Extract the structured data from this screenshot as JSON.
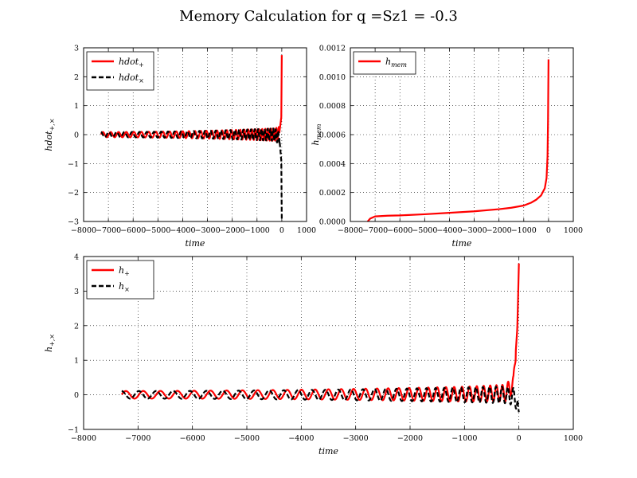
{
  "figure": {
    "title": "Memory Calculation for q =Sz1 = -0.3"
  },
  "colors": {
    "red": "#ff0000",
    "black": "#000000"
  },
  "chart_data": [
    {
      "type": "line",
      "panel": "top-left",
      "xlabel": "time",
      "ylabel": "hdot",
      "ylabel_sub": "+,×",
      "xlim": [
        -8000,
        1000
      ],
      "ylim": [
        -3,
        3
      ],
      "xticks": [
        -8000,
        -7000,
        -6000,
        -5000,
        -4000,
        -3000,
        -2000,
        -1000,
        0,
        1000
      ],
      "xtick_labels": [
        "−8000",
        "−7000",
        "−6000",
        "−5000",
        "−4000",
        "−3000",
        "−2000",
        "−1000",
        "0",
        "1000"
      ],
      "yticks": [
        -3,
        -2,
        -1,
        0,
        1,
        2,
        3
      ],
      "ytick_labels": [
        "−3",
        "−2",
        "−1",
        "0",
        "1",
        "2",
        "3"
      ],
      "grid": true,
      "legend_position": "top-left",
      "series": [
        {
          "name": "hdot",
          "name_sub": "+",
          "color": "#ff0000",
          "style": "solid",
          "description_x": [
            -7300,
            -1000,
            -300,
            -100,
            -20,
            0
          ],
          "x": [
            -7300,
            -1000,
            -300,
            -100,
            -20,
            0
          ],
          "y": [
            0,
            0,
            0,
            0.05,
            0.6,
            2.75
          ],
          "oscillation": {
            "x_start": -7300,
            "x_end": -100,
            "amp_start": 0.09,
            "amp_end": 0.22,
            "period_start": 320,
            "period_end": 95
          }
        },
        {
          "name": "hdot",
          "name_sub": "×",
          "color": "#000000",
          "style": "dashed",
          "x": [
            -7300,
            -1000,
            -300,
            -100,
            -20,
            0
          ],
          "y": [
            0,
            0,
            0,
            -0.1,
            -0.9,
            -2.9
          ],
          "oscillation": {
            "x_start": -7300,
            "x_end": -100,
            "amp_start": 0.09,
            "amp_end": 0.22,
            "period_start": 320,
            "period_end": 95,
            "phase": 1.5708
          }
        }
      ]
    },
    {
      "type": "line",
      "panel": "top-right",
      "xlabel": "time",
      "ylabel": "h",
      "ylabel_sub": "mem",
      "xlim": [
        -8000,
        1000
      ],
      "ylim": [
        0,
        0.0012
      ],
      "xticks": [
        -8000,
        -7000,
        -6000,
        -5000,
        -4000,
        -3000,
        -2000,
        -1000,
        0,
        1000
      ],
      "xtick_labels": [
        "−8000",
        "−7000",
        "−6000",
        "−5000",
        "−4000",
        "−3000",
        "−2000",
        "−1000",
        "0",
        "1000"
      ],
      "yticks": [
        0,
        0.0002,
        0.0004,
        0.0006,
        0.0008,
        0.001,
        0.0012
      ],
      "ytick_labels": [
        "0.0000",
        "0.0002",
        "0.0004",
        "0.0006",
        "0.0008",
        "0.0010",
        "0.0012"
      ],
      "grid": true,
      "legend_position": "top-left",
      "series": [
        {
          "name": "h",
          "name_sub": "mem",
          "color": "#ff0000",
          "style": "solid",
          "x": [
            -7300,
            -7200,
            -7000,
            -6500,
            -6000,
            -5000,
            -4000,
            -3000,
            -2000,
            -1500,
            -1000,
            -700,
            -500,
            -300,
            -150,
            -80,
            -40,
            -20,
            0
          ],
          "y": [
            0.0,
            2e-05,
            3.5e-05,
            4e-05,
            4.2e-05,
            5e-05,
            6e-05,
            7e-05,
            8.5e-05,
            9.5e-05,
            0.00011,
            0.00013,
            0.00015,
            0.00018,
            0.00023,
            0.0003,
            0.00045,
            0.0007,
            0.00112
          ]
        }
      ]
    },
    {
      "type": "line",
      "panel": "bottom",
      "xlabel": "time",
      "ylabel": "h",
      "ylabel_sub": "+,×",
      "xlim": [
        -8000,
        1000
      ],
      "ylim": [
        -1,
        4
      ],
      "xticks": [
        -8000,
        -7000,
        -6000,
        -5000,
        -4000,
        -3000,
        -2000,
        -1000,
        0,
        1000
      ],
      "xtick_labels": [
        "−8000",
        "−7000",
        "−6000",
        "−5000",
        "−4000",
        "−3000",
        "−2000",
        "−1000",
        "0",
        "1000"
      ],
      "yticks": [
        -1,
        0,
        1,
        2,
        3,
        4
      ],
      "ytick_labels": [
        "−1",
        "0",
        "1",
        "2",
        "3",
        "4"
      ],
      "grid": true,
      "legend_position": "top-left",
      "series": [
        {
          "name": "h",
          "name_sub": "+",
          "color": "#ff0000",
          "style": "solid",
          "x": [
            -7300,
            -1000,
            -250,
            -100,
            -60,
            -30,
            -15,
            0
          ],
          "y": [
            0,
            0.02,
            0.05,
            0.3,
            1.2,
            1.9,
            2.8,
            3.8
          ],
          "oscillation": {
            "x_start": -7300,
            "x_end": -60,
            "amp_start": 0.11,
            "amp_end": 0.25,
            "period_start": 320,
            "period_end": 95
          }
        },
        {
          "name": "h",
          "name_sub": "×",
          "color": "#000000",
          "style": "dashed",
          "x": [
            -7300,
            -1000,
            -250,
            -100,
            -30,
            0
          ],
          "y": [
            0,
            0,
            0,
            -0.05,
            -0.2,
            -0.5
          ],
          "oscillation": {
            "x_start": -7300,
            "x_end": -20,
            "amp_start": 0.11,
            "amp_end": 0.25,
            "period_start": 320,
            "period_end": 95,
            "phase": 1.5708
          }
        }
      ]
    }
  ]
}
